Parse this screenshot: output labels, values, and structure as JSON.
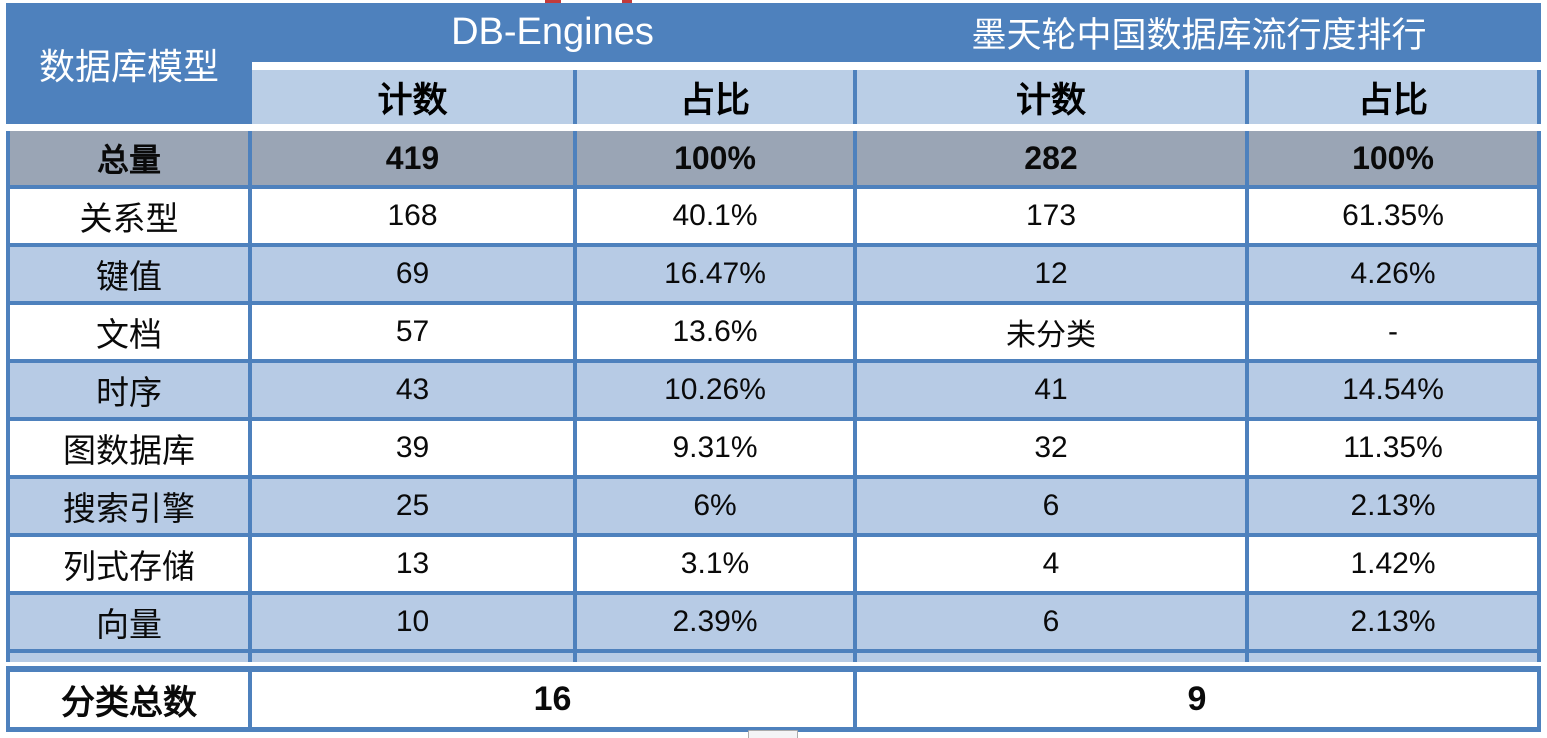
{
  "table": {
    "corner_header": "数据库模型",
    "group_headers": [
      {
        "label": "DB-Engines"
      },
      {
        "label": "墨天轮中国数据库流行度排行"
      }
    ],
    "sub_headers": [
      "计数",
      "占比",
      "计数",
      "占比"
    ],
    "rows": [
      {
        "label": "总量",
        "values": [
          "419",
          "100%",
          "282",
          "100%"
        ],
        "emphasis": true
      },
      {
        "label": "关系型",
        "values": [
          "168",
          "40.1%",
          "173",
          "61.35%"
        ]
      },
      {
        "label": "键值",
        "values": [
          "69",
          "16.47%",
          "12",
          "4.26%"
        ]
      },
      {
        "label": "文档",
        "values": [
          "57",
          "13.6%",
          "未分类",
          "-"
        ]
      },
      {
        "label": "时序",
        "values": [
          "43",
          "10.26%",
          "41",
          "14.54%"
        ]
      },
      {
        "label": "图数据库",
        "values": [
          "39",
          "9.31%",
          "32",
          "11.35%"
        ]
      },
      {
        "label": "搜索引擎",
        "values": [
          "25",
          "6%",
          "6",
          "2.13%"
        ]
      },
      {
        "label": "列式存储",
        "values": [
          "13",
          "3.1%",
          "4",
          "1.42%"
        ]
      },
      {
        "label": "向量",
        "values": [
          "10",
          "2.39%",
          "6",
          "2.13%"
        ]
      }
    ],
    "footer": {
      "label": "分类总数",
      "values": [
        "16",
        "9"
      ]
    }
  },
  "colors": {
    "header_blue": "#4E81BD",
    "subheader_light_blue": "#BACEE6",
    "row_light_blue": "#B7CBE5",
    "total_row_gray": "#9AA5B5",
    "artifact_red": "#C23B3B"
  },
  "chart_data": {
    "type": "table",
    "title": "数据库模型 / DB-Engines vs 墨天轮中国数据库流行度排行",
    "column_groups": [
      "DB-Engines",
      "墨天轮中国数据库流行度排行"
    ],
    "columns": [
      "数据库模型",
      "DB-Engines 计数",
      "DB-Engines 占比",
      "墨天轮 计数",
      "墨天轮 占比"
    ],
    "rows": [
      [
        "总量",
        "419",
        "100%",
        "282",
        "100%"
      ],
      [
        "关系型",
        "168",
        "40.1%",
        "173",
        "61.35%"
      ],
      [
        "键值",
        "69",
        "16.47%",
        "12",
        "4.26%"
      ],
      [
        "文档",
        "57",
        "13.6%",
        "未分类",
        "-"
      ],
      [
        "时序",
        "43",
        "10.26%",
        "41",
        "14.54%"
      ],
      [
        "图数据库",
        "39",
        "9.31%",
        "32",
        "11.35%"
      ],
      [
        "搜索引擎",
        "25",
        "6%",
        "6",
        "2.13%"
      ],
      [
        "列式存储",
        "13",
        "3.1%",
        "4",
        "1.42%"
      ],
      [
        "向量",
        "10",
        "2.39%",
        "6",
        "2.13%"
      ],
      [
        "分类总数",
        "16",
        "",
        "9",
        ""
      ]
    ]
  }
}
